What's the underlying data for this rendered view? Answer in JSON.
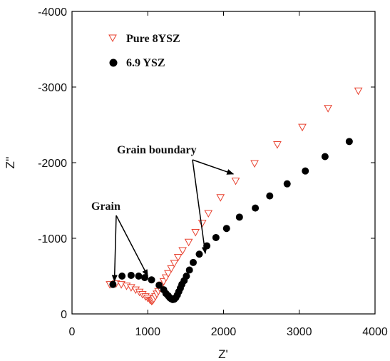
{
  "chart_data": {
    "type": "scatter",
    "xlabel": "Z'",
    "ylabel": "Z''",
    "xlim": [
      0,
      4000
    ],
    "ylim": [
      0,
      -4000
    ],
    "xticks": [
      0,
      1000,
      2000,
      3000,
      4000
    ],
    "yticks": [
      0,
      -1000,
      -2000,
      -3000,
      -4000
    ],
    "xtick_labels": [
      "0",
      "1000",
      "2000",
      "3000",
      "4000"
    ],
    "ytick_labels": [
      "0",
      "-1000",
      "-2000",
      "-3000",
      "-4000"
    ],
    "grid": false,
    "legend": "top-left",
    "series": [
      {
        "name": "Pure 8YSZ",
        "marker": "triangle-down-open",
        "color": "#e8412f",
        "points": [
          [
            500,
            -390
          ],
          [
            580,
            -400
          ],
          [
            650,
            -390
          ],
          [
            720,
            -370
          ],
          [
            780,
            -350
          ],
          [
            840,
            -320
          ],
          [
            890,
            -290
          ],
          [
            930,
            -260
          ],
          [
            970,
            -230
          ],
          [
            1000,
            -210
          ],
          [
            1030,
            -185
          ],
          [
            1050,
            -170
          ],
          [
            1060,
            -175
          ],
          [
            1070,
            -185
          ],
          [
            1080,
            -200
          ],
          [
            1100,
            -230
          ],
          [
            1120,
            -265
          ],
          [
            1140,
            -300
          ],
          [
            1160,
            -340
          ],
          [
            1185,
            -385
          ],
          [
            1210,
            -430
          ],
          [
            1240,
            -480
          ],
          [
            1270,
            -535
          ],
          [
            1310,
            -600
          ],
          [
            1350,
            -670
          ],
          [
            1400,
            -750
          ],
          [
            1460,
            -840
          ],
          [
            1540,
            -950
          ],
          [
            1630,
            -1080
          ],
          [
            1720,
            -1200
          ],
          [
            1800,
            -1330
          ],
          [
            1960,
            -1540
          ],
          [
            2160,
            -1760
          ],
          [
            2410,
            -1990
          ],
          [
            2710,
            -2240
          ],
          [
            3040,
            -2470
          ],
          [
            3380,
            -2720
          ],
          [
            3780,
            -2950
          ]
        ]
      },
      {
        "name": "6.9 YSZ",
        "marker": "circle-filled",
        "color": "#000000",
        "points": [
          [
            540,
            -390
          ],
          [
            660,
            -500
          ],
          [
            780,
            -510
          ],
          [
            880,
            -500
          ],
          [
            960,
            -480
          ],
          [
            1050,
            -450
          ],
          [
            1150,
            -380
          ],
          [
            1210,
            -320
          ],
          [
            1240,
            -270
          ],
          [
            1270,
            -240
          ],
          [
            1290,
            -215
          ],
          [
            1310,
            -200
          ],
          [
            1330,
            -190
          ],
          [
            1350,
            -195
          ],
          [
            1370,
            -215
          ],
          [
            1390,
            -250
          ],
          [
            1410,
            -295
          ],
          [
            1430,
            -340
          ],
          [
            1450,
            -390
          ],
          [
            1480,
            -440
          ],
          [
            1510,
            -500
          ],
          [
            1550,
            -580
          ],
          [
            1600,
            -680
          ],
          [
            1680,
            -790
          ],
          [
            1780,
            -900
          ],
          [
            1900,
            -1010
          ],
          [
            2040,
            -1130
          ],
          [
            2210,
            -1280
          ],
          [
            2420,
            -1400
          ],
          [
            2610,
            -1560
          ],
          [
            2840,
            -1720
          ],
          [
            3080,
            -1890
          ],
          [
            3340,
            -2080
          ],
          [
            3660,
            -2280
          ]
        ]
      }
    ],
    "annotations": [
      {
        "text": "Grain",
        "targets": [
          [
            560,
            -430
          ],
          [
            1000,
            -500
          ]
        ]
      },
      {
        "text": "Grain boundary",
        "targets": [
          [
            2130,
            -1850
          ],
          [
            1760,
            -800
          ]
        ]
      }
    ]
  }
}
